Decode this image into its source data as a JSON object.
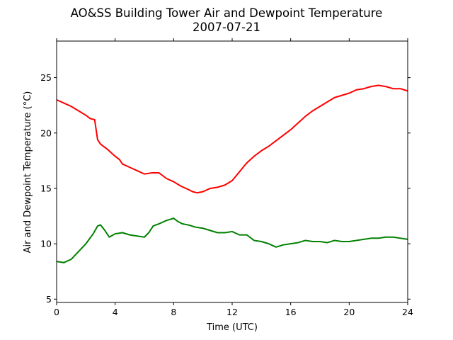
{
  "chart_data": {
    "type": "line",
    "title": "AO&SS Building Tower Air and Dewpoint Temperature",
    "subtitle": "2007-07-21",
    "xlabel": "Time (UTC)",
    "ylabel": "Air and Dewpoint Temperature (°C)",
    "xlim": [
      0,
      24
    ],
    "ylim": [
      4.7,
      28.3
    ],
    "xticks": [
      0,
      4,
      8,
      12,
      16,
      20,
      24
    ],
    "yticks": [
      5,
      10,
      15,
      20,
      25
    ],
    "grid": false,
    "series": [
      {
        "color": "#ff0000",
        "x": [
          0,
          0.5,
          1,
          1.5,
          2,
          2.3,
          2.6,
          2.7,
          2.8,
          3,
          3.5,
          4,
          4.3,
          4.5,
          5,
          5.5,
          6,
          6.5,
          7,
          7.5,
          8,
          8.5,
          9,
          9.3,
          9.6,
          10,
          10.5,
          11,
          11.5,
          12,
          12.5,
          13,
          13.5,
          14,
          14.5,
          15,
          15.5,
          16,
          16.5,
          17,
          17.5,
          18,
          18.5,
          19,
          19.5,
          20,
          20.5,
          21,
          21.5,
          22,
          22.5,
          23,
          23.5,
          24
        ],
        "y": [
          23.0,
          22.7,
          22.4,
          22.0,
          21.6,
          21.3,
          21.2,
          20.3,
          19.4,
          19.0,
          18.5,
          17.9,
          17.6,
          17.2,
          16.9,
          16.6,
          16.3,
          16.4,
          16.4,
          15.9,
          15.6,
          15.2,
          14.9,
          14.7,
          14.6,
          14.7,
          15.0,
          15.1,
          15.3,
          15.7,
          16.5,
          17.3,
          17.9,
          18.4,
          18.8,
          19.3,
          19.8,
          20.3,
          20.9,
          21.5,
          22.0,
          22.4,
          22.8,
          23.2,
          23.4,
          23.6,
          23.9,
          24.0,
          24.2,
          24.3,
          24.2,
          24.0,
          24.0,
          23.8
        ]
      },
      {
        "color": "#008000",
        "x": [
          0,
          0.5,
          1,
          1.5,
          2,
          2.5,
          2.8,
          3,
          3.3,
          3.6,
          4,
          4.5,
          5,
          5.5,
          6,
          6.3,
          6.6,
          7,
          7.5,
          8,
          8.3,
          8.6,
          9,
          9.5,
          10,
          10.5,
          11,
          11.5,
          12,
          12.5,
          13,
          13.5,
          14,
          14.5,
          15,
          15.5,
          16,
          16.5,
          17,
          17.5,
          18,
          18.5,
          19,
          19.5,
          20,
          20.5,
          21,
          21.5,
          22,
          22.5,
          23,
          23.5,
          24
        ],
        "y": [
          8.4,
          8.3,
          8.6,
          9.3,
          10.0,
          10.9,
          11.6,
          11.7,
          11.2,
          10.6,
          10.9,
          11.0,
          10.8,
          10.7,
          10.6,
          11.0,
          11.6,
          11.8,
          12.1,
          12.3,
          12.0,
          11.8,
          11.7,
          11.5,
          11.4,
          11.2,
          11.0,
          11.0,
          11.1,
          10.8,
          10.8,
          10.3,
          10.2,
          10.0,
          9.7,
          9.9,
          10.0,
          10.1,
          10.3,
          10.2,
          10.2,
          10.1,
          10.3,
          10.2,
          10.2,
          10.3,
          10.4,
          10.5,
          10.5,
          10.6,
          10.6,
          10.5,
          10.4
        ]
      }
    ]
  }
}
